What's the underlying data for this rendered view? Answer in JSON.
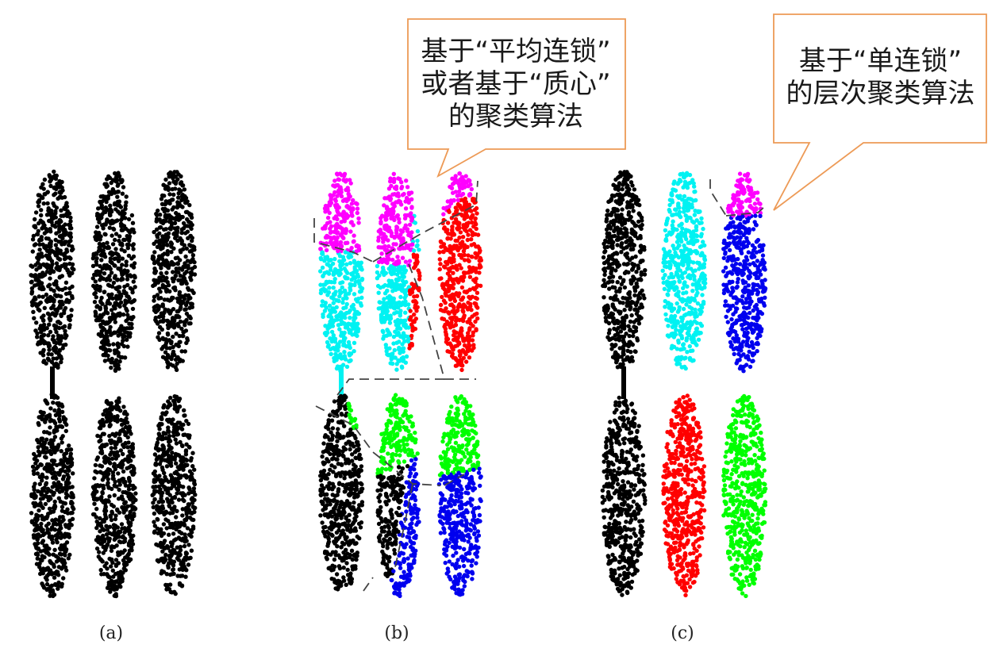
{
  "colors": {
    "black": "#000000",
    "magenta": "#ff00ff",
    "cyan": "#00f2f2",
    "red": "#ff0000",
    "green": "#00ff00",
    "blue": "#0000ee",
    "callout_border": "#ed9a56",
    "dashed_line": "#444444"
  },
  "panels": [
    {
      "label": "(a)",
      "scheme": "all-black"
    },
    {
      "label": "(b)",
      "scheme": "average-link-or-centroid"
    },
    {
      "label": "(c)",
      "scheme": "single-link"
    }
  ],
  "callouts": [
    {
      "text": "基于“平均连锁”\n或者基于“质心”\n的聚类算法"
    },
    {
      "text": "基于“单连锁”\n的层次聚类算法"
    }
  ]
}
